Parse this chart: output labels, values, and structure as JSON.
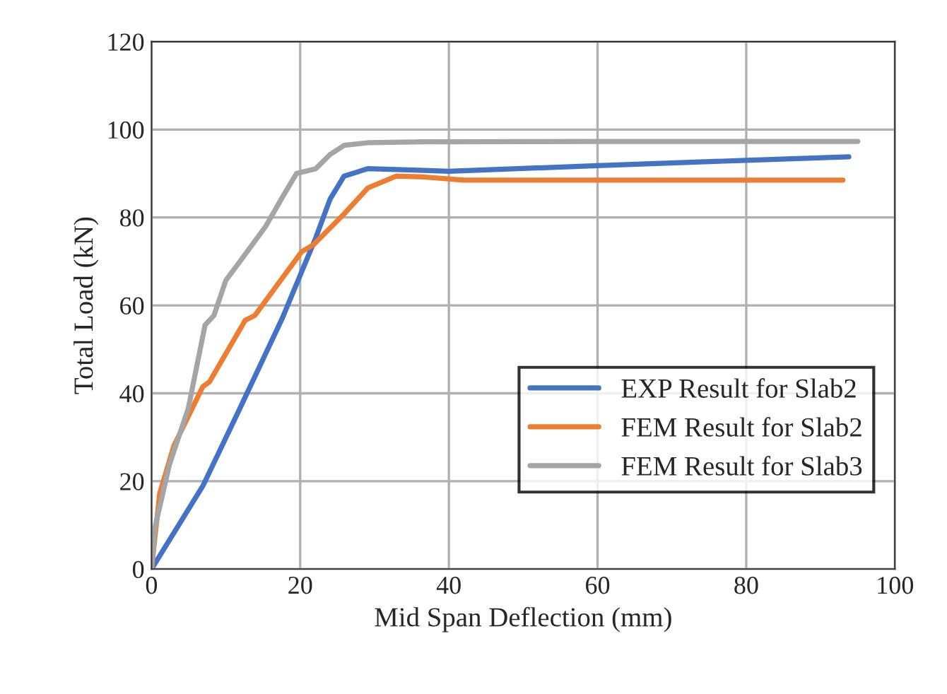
{
  "chart_data": {
    "type": "line",
    "xlabel": "Mid Span Deflection (mm)",
    "ylabel": "Total Load (kN)",
    "xlim": [
      0,
      100
    ],
    "ylim": [
      0,
      120
    ],
    "xticks": [
      0,
      20,
      40,
      60,
      80,
      100
    ],
    "yticks": [
      0,
      20,
      40,
      60,
      80,
      100,
      120
    ],
    "grid": true,
    "legend": "bottom right",
    "marker": "none",
    "line_style": "solid",
    "series": [
      {
        "name": "EXP Result for Slab2",
        "color": "#4472c4",
        "x": [
          0,
          6.9,
          11.9,
          17.6,
          22.1,
          24.0,
          25.9,
          29.1,
          36.7,
          40,
          60,
          80,
          93.8
        ],
        "values": [
          0,
          18.9,
          36.6,
          57.1,
          75.4,
          84.1,
          89.4,
          91.1,
          90.7,
          90.5,
          91.8,
          93.0,
          93.8
        ]
      },
      {
        "name": "FEM Result for Slab2",
        "color": "#ed7d31",
        "x": [
          0,
          1.1,
          3.0,
          6.9,
          7.8,
          12.6,
          13.9,
          20.2,
          21.8,
          25.9,
          29.1,
          32.9,
          36.7,
          42,
          60,
          80,
          93
        ],
        "values": [
          0,
          17.2,
          28,
          41.5,
          42.6,
          56.6,
          57.7,
          72.2,
          73.8,
          80.8,
          86.7,
          89.4,
          89.2,
          88.5,
          88.5,
          88.5,
          88.5
        ]
      },
      {
        "name": "FEM Result for Slab3",
        "color": "#a5a5a5",
        "x": [
          0,
          0.5,
          2.4,
          4.95,
          7.2,
          8.4,
          10.0,
          11.9,
          15.4,
          17.6,
          19.5,
          22.1,
          24.0,
          25.9,
          29.1,
          36.7,
          60,
          95
        ],
        "values": [
          0,
          9.7,
          23.7,
          36.6,
          55.5,
          57.7,
          65.7,
          70,
          78.1,
          84.6,
          90,
          91.1,
          94.3,
          96.4,
          97,
          97.2,
          97.3,
          97.3
        ]
      }
    ]
  }
}
